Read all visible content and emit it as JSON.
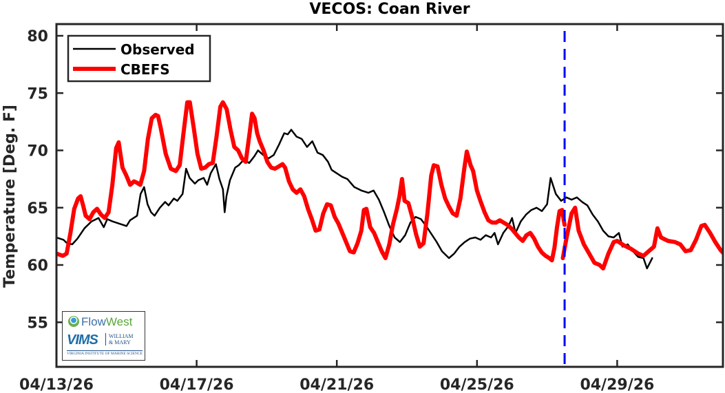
{
  "chart_data": {
    "type": "line",
    "title": "VECOS: Coan River",
    "xlabel": "",
    "ylabel": "Temperature [Deg. F]",
    "ylim": [
      51,
      81
    ],
    "yticks": [
      55,
      60,
      65,
      70,
      75,
      80
    ],
    "x_start_date": "04/13/26",
    "x_range_days": [
      0,
      19
    ],
    "xticks": [
      {
        "day": 0,
        "label": "04/13/26"
      },
      {
        "day": 4,
        "label": "04/17/26"
      },
      {
        "day": 8,
        "label": "04/21/26"
      },
      {
        "day": 12,
        "label": "04/25/26"
      },
      {
        "day": 16,
        "label": "04/29/26"
      }
    ],
    "grid": false,
    "legend_position": "upper-left",
    "forecast_marker": {
      "day": 14.5,
      "style": "dashed",
      "color": "#0000ff"
    },
    "series": [
      {
        "name": "Observed",
        "color": "#000000",
        "width": 2.5,
        "points": [
          [
            0,
            62.4
          ],
          [
            0.2,
            62.2
          ],
          [
            0.3,
            61.9
          ],
          [
            0.45,
            61.8
          ],
          [
            0.6,
            62.3
          ],
          [
            0.8,
            63.2
          ],
          [
            1.0,
            63.8
          ],
          [
            1.2,
            64.1
          ],
          [
            1.35,
            63.3
          ],
          [
            1.45,
            64.0
          ],
          [
            1.6,
            63.8
          ],
          [
            1.8,
            63.6
          ],
          [
            2.0,
            63.4
          ],
          [
            2.1,
            63.9
          ],
          [
            2.3,
            64.3
          ],
          [
            2.4,
            66.2
          ],
          [
            2.5,
            66.8
          ],
          [
            2.6,
            65.3
          ],
          [
            2.7,
            64.6
          ],
          [
            2.8,
            64.3
          ],
          [
            2.95,
            65.0
          ],
          [
            3.1,
            65.5
          ],
          [
            3.2,
            65.2
          ],
          [
            3.35,
            65.8
          ],
          [
            3.45,
            65.6
          ],
          [
            3.6,
            66.2
          ],
          [
            3.7,
            68.4
          ],
          [
            3.8,
            67.6
          ],
          [
            3.95,
            67.1
          ],
          [
            4.05,
            67.4
          ],
          [
            4.2,
            67.6
          ],
          [
            4.3,
            67.0
          ],
          [
            4.4,
            68.0
          ],
          [
            4.55,
            68.8
          ],
          [
            4.65,
            67.5
          ],
          [
            4.75,
            66.6
          ],
          [
            4.8,
            64.6
          ],
          [
            4.85,
            66.0
          ],
          [
            4.95,
            67.4
          ],
          [
            5.1,
            68.5
          ],
          [
            5.2,
            68.7
          ],
          [
            5.35,
            69.2
          ],
          [
            5.5,
            68.9
          ],
          [
            5.65,
            69.5
          ],
          [
            5.75,
            70.0
          ],
          [
            5.9,
            69.6
          ],
          [
            6.05,
            69.3
          ],
          [
            6.2,
            69.6
          ],
          [
            6.35,
            70.5
          ],
          [
            6.5,
            71.5
          ],
          [
            6.6,
            71.4
          ],
          [
            6.7,
            71.8
          ],
          [
            6.85,
            71.2
          ],
          [
            7.0,
            71.0
          ],
          [
            7.15,
            70.3
          ],
          [
            7.3,
            70.8
          ],
          [
            7.45,
            69.8
          ],
          [
            7.6,
            69.6
          ],
          [
            7.75,
            69.0
          ],
          [
            7.85,
            68.3
          ],
          [
            8.0,
            68.0
          ],
          [
            8.15,
            67.7
          ],
          [
            8.3,
            67.5
          ],
          [
            8.5,
            66.8
          ],
          [
            8.7,
            66.5
          ],
          [
            8.9,
            66.3
          ],
          [
            9.05,
            66.5
          ],
          [
            9.2,
            65.7
          ],
          [
            9.35,
            64.6
          ],
          [
            9.5,
            63.4
          ],
          [
            9.65,
            62.4
          ],
          [
            9.8,
            62.0
          ],
          [
            9.95,
            62.6
          ],
          [
            10.1,
            63.7
          ],
          [
            10.25,
            64.2
          ],
          [
            10.4,
            64.0
          ],
          [
            10.55,
            63.4
          ],
          [
            10.7,
            62.7
          ],
          [
            10.85,
            62.0
          ],
          [
            11.0,
            61.2
          ],
          [
            11.2,
            60.6
          ],
          [
            11.35,
            61.0
          ],
          [
            11.5,
            61.6
          ],
          [
            11.65,
            62.0
          ],
          [
            11.8,
            62.3
          ],
          [
            11.95,
            62.4
          ],
          [
            12.1,
            62.2
          ],
          [
            12.25,
            62.6
          ],
          [
            12.4,
            62.4
          ],
          [
            12.5,
            62.8
          ],
          [
            12.6,
            61.8
          ],
          [
            12.75,
            62.8
          ],
          [
            12.9,
            63.4
          ],
          [
            13.0,
            64.1
          ],
          [
            13.1,
            62.8
          ],
          [
            13.25,
            63.8
          ],
          [
            13.4,
            64.4
          ],
          [
            13.55,
            64.8
          ],
          [
            13.7,
            65.0
          ],
          [
            13.85,
            64.7
          ],
          [
            14.0,
            65.3
          ],
          [
            14.1,
            67.6
          ],
          [
            14.25,
            66.2
          ],
          [
            14.4,
            65.6
          ],
          [
            14.55,
            65.9
          ],
          [
            14.7,
            65.7
          ],
          [
            14.85,
            65.9
          ],
          [
            15.0,
            65.5
          ],
          [
            15.15,
            65.2
          ],
          [
            15.3,
            64.4
          ],
          [
            15.45,
            63.8
          ],
          [
            15.6,
            63.0
          ],
          [
            15.75,
            62.5
          ],
          [
            15.9,
            62.4
          ],
          [
            16.05,
            62.8
          ],
          [
            16.15,
            61.6
          ],
          [
            16.3,
            61.8
          ],
          [
            16.45,
            61.2
          ],
          [
            16.6,
            60.7
          ],
          [
            16.75,
            60.6
          ],
          [
            16.85,
            59.7
          ],
          [
            16.95,
            60.3
          ],
          [
            17.0,
            60.6
          ]
        ]
      },
      {
        "name": "CBEFS",
        "color": "#ff0000",
        "width": 6,
        "points": [
          [
            0,
            61.0
          ],
          [
            0.25,
            60.8
          ],
          [
            0.4,
            61.0
          ],
          [
            0.55,
            62.8
          ],
          [
            0.7,
            64.9
          ],
          [
            0.85,
            65.8
          ],
          [
            0.95,
            66.0
          ],
          [
            1.05,
            65.2
          ],
          [
            1.15,
            64.3
          ],
          [
            1.3,
            64.0
          ],
          [
            1.45,
            64.6
          ],
          [
            1.6,
            64.9
          ],
          [
            1.75,
            64.4
          ],
          [
            1.9,
            64.1
          ],
          [
            2.05,
            64.6
          ],
          [
            2.2,
            67.0
          ],
          [
            2.35,
            70.2
          ],
          [
            2.45,
            70.7
          ],
          [
            2.6,
            68.5
          ],
          [
            2.75,
            67.8
          ],
          [
            2.9,
            67.0
          ],
          [
            3.05,
            67.3
          ],
          [
            3.15,
            67.2
          ],
          [
            3.3,
            67.0
          ],
          [
            3.45,
            68.2
          ],
          [
            3.6,
            71.0
          ],
          [
            3.75,
            72.8
          ],
          [
            3.9,
            73.1
          ],
          [
            4.0,
            73.0
          ],
          [
            4.1,
            72.0
          ],
          [
            4.3,
            69.7
          ],
          [
            4.5,
            68.4
          ],
          [
            4.7,
            68.2
          ],
          [
            4.85,
            68.7
          ],
          [
            5.0,
            71.5
          ],
          [
            5.15,
            74.2
          ],
          [
            5.25,
            74.2
          ],
          [
            5.4,
            72.0
          ],
          [
            5.55,
            69.7
          ],
          [
            5.7,
            68.4
          ],
          [
            5.85,
            68.5
          ],
          [
            6.0,
            68.8
          ],
          [
            6.15,
            68.9
          ],
          [
            6.3,
            71.2
          ],
          [
            6.45,
            73.8
          ],
          [
            6.55,
            74.2
          ],
          [
            6.7,
            73.6
          ],
          [
            6.85,
            71.8
          ],
          [
            7.0,
            70.3
          ],
          [
            7.15,
            70.0
          ],
          [
            7.3,
            69.3
          ],
          [
            7.45,
            69.0
          ],
          [
            7.6,
            71.5
          ],
          [
            7.7,
            73.2
          ],
          [
            7.8,
            72.8
          ],
          [
            7.9,
            71.5
          ],
          [
            8.0,
            70.8
          ],
          [
            8.15,
            70.0
          ],
          [
            8.3,
            69.0
          ],
          [
            8.45,
            68.5
          ],
          [
            8.6,
            68.4
          ],
          [
            8.75,
            68.6
          ],
          [
            8.9,
            68.8
          ],
          [
            9.0,
            68.5
          ],
          [
            9.15,
            67.3
          ],
          [
            9.3,
            66.6
          ],
          [
            9.45,
            66.3
          ],
          [
            9.6,
            66.6
          ],
          [
            9.75,
            66.0
          ],
          [
            9.9,
            64.9
          ],
          [
            10.05,
            64.0
          ],
          [
            10.2,
            63.0
          ],
          [
            10.35,
            63.1
          ],
          [
            10.5,
            64.5
          ],
          [
            10.65,
            65.3
          ],
          [
            10.8,
            65.2
          ],
          [
            10.95,
            64.2
          ],
          [
            11.1,
            63.6
          ],
          [
            11.25,
            62.8
          ],
          [
            11.4,
            62.0
          ],
          [
            11.55,
            61.2
          ],
          [
            11.7,
            61.1
          ],
          [
            11.85,
            61.9
          ],
          [
            12.0,
            63.0
          ],
          [
            12.1,
            64.8
          ],
          [
            12.2,
            64.9
          ],
          [
            12.35,
            63.3
          ],
          [
            12.5,
            62.8
          ],
          [
            12.65,
            62.0
          ],
          [
            12.8,
            61.2
          ],
          [
            12.95,
            60.6
          ],
          [
            13.1,
            61.8
          ],
          [
            13.25,
            63.6
          ],
          [
            13.4,
            64.9
          ],
          [
            13.5,
            66.0
          ],
          [
            13.6,
            67.5
          ],
          [
            13.7,
            65.6
          ],
          [
            13.85,
            65.4
          ],
          [
            14.0,
            64.2
          ],
          [
            14.15,
            62.7
          ],
          [
            14.3,
            61.6
          ],
          [
            14.45,
            61.9
          ],
          [
            14.6,
            64.5
          ],
          [
            14.75,
            67.8
          ],
          [
            14.85,
            68.7
          ],
          [
            15.0,
            68.6
          ],
          [
            15.15,
            67.0
          ],
          [
            15.3,
            65.8
          ],
          [
            15.45,
            65.1
          ],
          [
            15.6,
            64.5
          ],
          [
            15.75,
            64.3
          ],
          [
            15.9,
            65.8
          ],
          [
            16.05,
            68.4
          ],
          [
            16.15,
            69.9
          ],
          [
            16.3,
            68.7
          ],
          [
            16.4,
            68.2
          ],
          [
            16.55,
            66.5
          ],
          [
            16.7,
            65.5
          ],
          [
            16.85,
            64.6
          ],
          [
            17.0,
            63.9
          ],
          [
            17.15,
            63.7
          ],
          [
            17.3,
            63.7
          ],
          [
            17.45,
            63.9
          ],
          [
            17.6,
            63.7
          ],
          [
            17.75,
            63.5
          ],
          [
            17.9,
            63.2
          ],
          [
            18.05,
            62.8
          ],
          [
            18.2,
            62.4
          ],
          [
            18.35,
            62.1
          ],
          [
            18.5,
            62.6
          ],
          [
            18.65,
            62.8
          ],
          [
            18.8,
            62.3
          ],
          [
            18.95,
            61.6
          ],
          [
            19.1,
            61.1
          ],
          [
            19.25,
            60.8
          ],
          [
            19.4,
            60.6
          ],
          [
            19.5,
            60.4
          ],
          [
            19.6,
            61.5
          ],
          [
            19.7,
            63.3
          ],
          [
            19.8,
            64.7
          ],
          [
            19.9,
            64.8
          ],
          [
            20.0,
            63.5
          ]
        ]
      },
      {
        "name": "CBEFS-forecast",
        "legend": false,
        "color": "#ff0000",
        "width": 6,
        "points": [
          [
            14.45,
            60.6
          ],
          [
            14.55,
            62.3
          ],
          [
            14.7,
            64.5
          ],
          [
            14.8,
            65.0
          ],
          [
            14.9,
            63.0
          ],
          [
            15.05,
            61.8
          ],
          [
            15.2,
            61.0
          ],
          [
            15.35,
            60.2
          ],
          [
            15.5,
            60.0
          ],
          [
            15.6,
            59.7
          ],
          [
            15.75,
            61.0
          ],
          [
            15.9,
            62.0
          ],
          [
            16.0,
            62.1
          ],
          [
            16.2,
            61.7
          ],
          [
            16.4,
            61.4
          ],
          [
            16.6,
            61.0
          ],
          [
            16.75,
            60.8
          ],
          [
            16.9,
            61.2
          ],
          [
            17.05,
            61.6
          ],
          [
            17.15,
            63.2
          ],
          [
            17.25,
            62.4
          ],
          [
            17.45,
            62.1
          ],
          [
            17.65,
            62.0
          ],
          [
            17.8,
            61.8
          ],
          [
            17.95,
            61.2
          ],
          [
            18.1,
            61.3
          ],
          [
            18.25,
            62.2
          ],
          [
            18.4,
            63.4
          ],
          [
            18.5,
            63.5
          ],
          [
            18.65,
            62.8
          ],
          [
            18.8,
            62.0
          ],
          [
            18.95,
            61.3
          ],
          [
            19.1,
            60.8
          ],
          [
            19.25,
            60.8
          ],
          [
            19.35,
            62.2
          ],
          [
            19.45,
            63.7
          ],
          [
            19.55,
            63.8
          ],
          [
            19.7,
            63.2
          ],
          [
            19.8,
            62.7
          ]
        ]
      }
    ]
  },
  "legend": {
    "items": [
      {
        "label": "Observed",
        "color": "#000000"
      },
      {
        "label": "CBEFS",
        "color": "#ff0000"
      }
    ]
  },
  "logo": {
    "flowwest_a": "Flow",
    "flowwest_b": "West",
    "vims": "VIMS",
    "wm_line1": "WILLIAM",
    "wm_line2": "& MARY",
    "subtitle": "VIRGINIA INSTITUTE OF MARINE SCIENCE"
  }
}
